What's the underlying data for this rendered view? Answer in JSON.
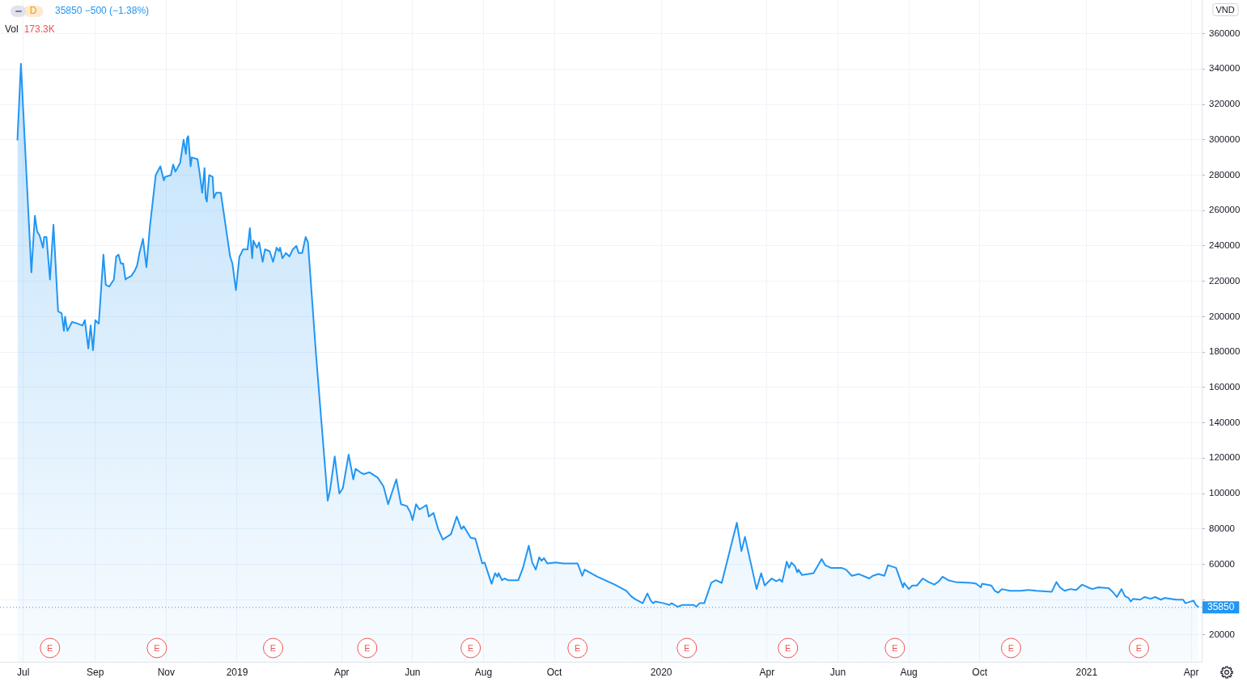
{
  "chart_data": {
    "type": "area",
    "color": "#2196f3",
    "ylabel": "VND",
    "x": [
      "2018-06-26",
      "2018-06-29",
      "2018-07-08",
      "2018-07-11",
      "2018-07-13",
      "2018-07-15",
      "2018-07-18",
      "2018-07-19",
      "2018-07-21",
      "2018-07-24",
      "2018-07-27",
      "2018-07-31",
      "2018-08-03",
      "2018-08-05",
      "2018-08-06",
      "2018-08-08",
      "2018-08-12",
      "2018-08-17",
      "2018-08-21",
      "2018-08-23",
      "2018-08-26",
      "2018-08-28",
      "2018-08-30",
      "2018-09-01",
      "2018-09-04",
      "2018-09-08",
      "2018-09-10",
      "2018-09-13",
      "2018-09-17",
      "2018-09-19",
      "2018-09-21",
      "2018-09-23",
      "2018-09-25",
      "2018-09-27",
      "2018-09-29",
      "2018-10-02",
      "2018-10-05",
      "2018-10-07",
      "2018-10-09",
      "2018-10-12",
      "2018-10-15",
      "2018-10-18",
      "2018-10-23",
      "2018-10-27",
      "2018-10-30",
      "2018-10-31",
      "2018-11-05",
      "2018-11-07",
      "2018-11-09",
      "2018-11-13",
      "2018-11-16",
      "2018-11-18",
      "2018-11-19",
      "2018-11-20",
      "2018-11-22",
      "2018-11-23",
      "2018-11-28",
      "2018-11-30",
      "2018-12-02",
      "2018-12-04",
      "2018-12-05",
      "2018-12-06",
      "2018-12-08",
      "2018-12-11",
      "2018-12-12",
      "2018-12-14",
      "2018-12-18",
      "2018-12-26",
      "2018-12-28",
      "2018-12-31",
      "2019-01-03",
      "2019-01-04",
      "2019-01-06",
      "2019-01-10",
      "2019-01-12",
      "2019-01-14",
      "2019-01-15",
      "2019-01-18",
      "2019-01-20",
      "2019-01-23",
      "2019-01-25",
      "2019-01-29",
      "2019-02-01",
      "2019-02-04",
      "2019-02-06",
      "2019-02-07",
      "2019-02-09",
      "2019-02-12",
      "2019-02-15",
      "2019-02-18",
      "2019-02-21",
      "2019-02-23",
      "2019-02-26",
      "2019-03-01",
      "2019-03-03",
      "2019-03-10",
      "2019-03-20",
      "2019-03-22",
      "2019-03-26",
      "2019-03-30",
      "2019-04-02",
      "2019-04-07",
      "2019-04-11",
      "2019-04-13",
      "2019-04-17",
      "2019-04-20",
      "2019-04-25",
      "2019-05-02",
      "2019-05-07",
      "2019-05-11",
      "2019-05-16",
      "2019-05-18",
      "2019-05-22",
      "2019-05-27",
      "2019-05-30",
      "2019-06-01",
      "2019-06-04",
      "2019-06-07",
      "2019-06-13",
      "2019-06-15",
      "2019-06-19",
      "2019-06-23",
      "2019-06-27",
      "2019-07-04",
      "2019-07-09",
      "2019-07-13",
      "2019-07-15",
      "2019-07-21",
      "2019-07-25",
      "2019-07-31",
      "2019-08-02",
      "2019-08-08",
      "2019-08-11",
      "2019-08-13",
      "2019-08-14",
      "2019-08-17",
      "2019-08-19",
      "2019-08-22",
      "2019-08-31",
      "2019-09-04",
      "2019-09-09",
      "2019-09-12",
      "2019-09-15",
      "2019-09-18",
      "2019-09-20",
      "2019-09-22",
      "2019-09-25",
      "2019-10-02",
      "2019-10-09",
      "2019-10-21",
      "2019-10-25",
      "2019-10-27",
      "2019-11-07",
      "2019-11-22",
      "2019-12-02",
      "2019-12-06",
      "2019-12-09",
      "2019-12-16",
      "2019-12-20",
      "2019-12-23",
      "2019-12-25",
      "2019-12-27",
      "2020-01-03",
      "2020-01-08",
      "2020-01-10",
      "2020-01-15",
      "2020-01-19",
      "2020-01-29",
      "2020-01-31",
      "2020-02-03",
      "2020-02-07",
      "2020-02-13",
      "2020-02-17",
      "2020-02-22",
      "2020-03-06",
      "2020-03-10",
      "2020-03-13",
      "2020-03-23",
      "2020-03-27",
      "2020-03-30",
      "2020-04-05",
      "2020-04-09",
      "2020-04-12",
      "2020-04-14",
      "2020-04-18",
      "2020-04-20",
      "2020-04-22",
      "2020-04-25",
      "2020-04-27",
      "2020-04-28",
      "2020-05-01",
      "2020-05-11",
      "2020-05-18",
      "2020-05-21",
      "2020-05-26",
      "2020-06-04",
      "2020-06-08",
      "2020-06-13",
      "2020-06-19",
      "2020-06-28",
      "2020-07-01",
      "2020-07-06",
      "2020-07-11",
      "2020-07-14",
      "2020-07-21",
      "2020-07-27",
      "2020-07-28",
      "2020-08-01",
      "2020-08-04",
      "2020-08-08",
      "2020-08-13",
      "2020-08-18",
      "2020-08-23",
      "2020-08-27",
      "2020-08-30",
      "2020-09-04",
      "2020-09-10",
      "2020-09-24",
      "2020-09-28",
      "2020-10-02",
      "2020-10-03",
      "2020-10-11",
      "2020-10-14",
      "2020-10-17",
      "2020-10-20",
      "2020-10-27",
      "2020-11-05",
      "2020-11-12",
      "2020-11-19",
      "2020-12-02",
      "2020-12-06",
      "2020-12-09",
      "2020-12-13",
      "2020-12-18",
      "2020-12-23",
      "2020-12-28",
      "2021-01-02",
      "2021-01-06",
      "2021-01-11",
      "2021-01-20",
      "2021-01-24",
      "2021-01-27",
      "2021-01-31",
      "2021-02-03",
      "2021-02-06",
      "2021-02-08",
      "2021-02-10",
      "2021-02-16",
      "2021-02-20",
      "2021-02-25",
      "2021-03-01",
      "2021-03-06",
      "2021-03-09",
      "2021-03-19",
      "2021-03-25",
      "2021-03-27",
      "2021-04-03",
      "2021-04-05",
      "2021-04-07"
    ],
    "values": [
      300000,
      343000,
      225000,
      257000,
      248000,
      246000,
      239000,
      245000,
      245000,
      221000,
      252000,
      203000,
      202000,
      192000,
      200000,
      192000,
      197000,
      196000,
      195000,
      198000,
      182000,
      195000,
      181000,
      198000,
      196000,
      235000,
      218000,
      217000,
      221000,
      234000,
      235000,
      230000,
      230000,
      221000,
      222000,
      223000,
      226000,
      229000,
      236000,
      244000,
      228000,
      251000,
      280000,
      285000,
      277000,
      279000,
      280000,
      286000,
      282000,
      287000,
      300000,
      292000,
      301000,
      302000,
      285000,
      290000,
      289000,
      280000,
      270000,
      284000,
      267000,
      265000,
      280000,
      279000,
      267000,
      270000,
      270000,
      234000,
      230000,
      215000,
      234000,
      235000,
      238000,
      238000,
      250000,
      233000,
      243000,
      239000,
      242000,
      231000,
      238000,
      237000,
      231000,
      239000,
      237000,
      239000,
      233000,
      236000,
      234000,
      238000,
      240000,
      236000,
      236000,
      245000,
      242000,
      178000,
      96000,
      102000,
      121000,
      100000,
      103000,
      122000,
      108000,
      114000,
      112000,
      111000,
      112000,
      109000,
      104000,
      94000,
      104000,
      108000,
      94000,
      93000,
      89500,
      85000,
      94000,
      91000,
      93500,
      87000,
      89000,
      80000,
      74000,
      77000,
      87000,
      80000,
      81500,
      75000,
      74500,
      60500,
      61000,
      49000,
      55000,
      53000,
      55000,
      51000,
      52000,
      51000,
      51000,
      58000,
      70500,
      61000,
      57000,
      64000,
      62000,
      63500,
      60500,
      61000,
      60500,
      60500,
      53500,
      57000,
      53000,
      48500,
      45000,
      42000,
      40500,
      38000,
      43500,
      39500,
      38000,
      39000,
      38000,
      37000,
      38000,
      36000,
      37000,
      37000,
      36000,
      38000,
      38000,
      49500,
      51000,
      49500,
      83500,
      67500,
      75500,
      46000,
      55000,
      48000,
      52000,
      50500,
      51500,
      50000,
      61500,
      58000,
      61000,
      59000,
      55500,
      57000,
      54000,
      55000,
      63000,
      59500,
      58000,
      58000,
      57000,
      53500,
      54500,
      52000,
      53500,
      54500,
      53500,
      59500,
      58000,
      47000,
      49500,
      46000,
      48000,
      48000,
      52000,
      50000,
      48500,
      50500,
      53000,
      51000,
      50000,
      49500,
      49000,
      47000,
      49000,
      48000,
      45000,
      44000,
      46000,
      45000,
      45000,
      45500,
      45000,
      44500,
      50000,
      47000,
      45000,
      46000,
      45500,
      48500,
      47000,
      46000,
      47000,
      46500,
      44000,
      41500,
      46000,
      42000,
      41000,
      39000,
      40500,
      40000,
      41500,
      40500,
      41500,
      40000,
      41000,
      40000,
      40000,
      38000,
      39500,
      37000,
      35850
    ],
    "xlim": [
      "2018-06-11",
      "2021-04-10"
    ],
    "xticks": [
      {
        "value": "2018-07-01",
        "label": "Jul"
      },
      {
        "value": "2018-09-01",
        "label": "Sep"
      },
      {
        "value": "2018-11-01",
        "label": "Nov"
      },
      {
        "value": "2019-01-01",
        "label": "2019"
      },
      {
        "value": "2019-04-01",
        "label": "Apr"
      },
      {
        "value": "2019-06-01",
        "label": "Jun"
      },
      {
        "value": "2019-08-01",
        "label": "Aug"
      },
      {
        "value": "2019-10-01",
        "label": "Oct"
      },
      {
        "value": "2020-01-01",
        "label": "2020"
      },
      {
        "value": "2020-04-01",
        "label": "Apr"
      },
      {
        "value": "2020-06-01",
        "label": "Jun"
      },
      {
        "value": "2020-08-01",
        "label": "Aug"
      },
      {
        "value": "2020-10-01",
        "label": "Oct"
      },
      {
        "value": "2021-01-01",
        "label": "2021"
      },
      {
        "value": "2021-04-01",
        "label": "Apr"
      }
    ],
    "ylim": [
      4900,
      379000
    ],
    "yticks": [
      20000,
      {
        "value": 40000,
        "label": null
      },
      60000,
      80000,
      100000,
      120000,
      140000,
      160000,
      180000,
      200000,
      220000,
      240000,
      260000,
      280000,
      300000,
      320000,
      340000,
      360000
    ],
    "grid": true,
    "ref_lines": [
      {
        "axis": "y",
        "value": 35850,
        "label": "35850",
        "color": "#2196f3",
        "line_style": "dotted"
      }
    ],
    "annotations": [
      "D",
      "35850 −500 (−1.38%)",
      "Vol",
      "173.3K",
      {
        "text": "E",
        "x": "2018-07-24"
      },
      {
        "text": "E",
        "x": "2018-10-24"
      },
      {
        "text": "E",
        "x": "2019-02-01"
      },
      {
        "text": "E",
        "x": "2019-04-23"
      },
      {
        "text": "E",
        "x": "2019-07-21"
      },
      {
        "text": "E",
        "x": "2019-10-21"
      },
      {
        "text": "E",
        "x": "2020-01-23"
      },
      {
        "text": "E",
        "x": "2020-04-19"
      },
      {
        "text": "E",
        "x": "2020-07-20"
      },
      {
        "text": "E",
        "x": "2020-10-28"
      },
      {
        "text": "E",
        "x": "2021-02-15"
      }
    ]
  }
}
